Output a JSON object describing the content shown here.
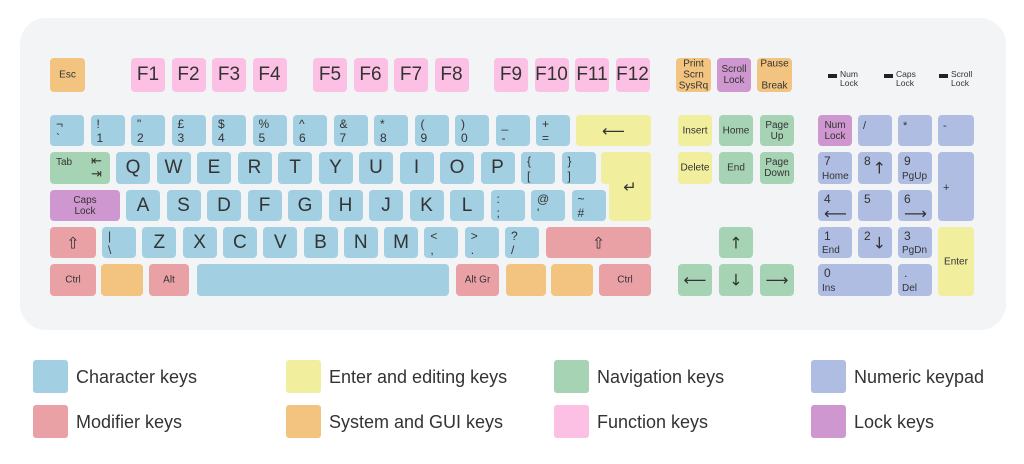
{
  "colors": {
    "character": "#a2cfe1",
    "modifier": "#e9a1a6",
    "enter_editing": "#f1ee9e",
    "system_gui": "#f2c480",
    "navigation": "#a6d3b3",
    "function": "#fdc0e5",
    "numeric": "#b0bde2",
    "lock": "#cf97cf"
  },
  "keys": [
    {
      "text": "Esc",
      "cat": "system_gui"
    },
    {
      "main": "F1",
      "cat": "function"
    },
    {
      "main": "F2",
      "cat": "function"
    },
    {
      "main": "F3",
      "cat": "function"
    },
    {
      "main": "F4",
      "cat": "function"
    },
    {
      "main": "F5",
      "cat": "function"
    },
    {
      "main": "F6",
      "cat": "function"
    },
    {
      "main": "F7",
      "cat": "function"
    },
    {
      "main": "F8",
      "cat": "function"
    },
    {
      "main": "F9",
      "cat": "function"
    },
    {
      "main": "F10",
      "cat": "function"
    },
    {
      "main": "F11",
      "cat": "function"
    },
    {
      "main": "F12",
      "cat": "function"
    },
    {
      "text": "Print\nScrn\nSysRq",
      "cat": "system_gui"
    },
    {
      "text": "Scroll\nLock",
      "cat": "lock"
    },
    {
      "text": "Pause\n\nBreak",
      "cat": "system_gui"
    },
    {
      "top": "¬",
      "bottom": "`",
      "cat": "character"
    },
    {
      "top": "!",
      "bottom": "1",
      "cat": "character"
    },
    {
      "top": "\"",
      "bottom": "2",
      "cat": "character"
    },
    {
      "top": "£",
      "bottom": "3",
      "cat": "character"
    },
    {
      "top": "$",
      "bottom": "4",
      "cat": "character"
    },
    {
      "top": "%",
      "bottom": "5",
      "cat": "character"
    },
    {
      "top": "^",
      "bottom": "6",
      "cat": "character"
    },
    {
      "top": "&",
      "bottom": "7",
      "cat": "character"
    },
    {
      "top": "*",
      "bottom": "8",
      "cat": "character"
    },
    {
      "top": "(",
      "bottom": "9",
      "cat": "character"
    },
    {
      "top": ")",
      "bottom": "0",
      "cat": "character"
    },
    {
      "top": "_",
      "bottom": "-",
      "cat": "character"
    },
    {
      "top": "+",
      "bottom": "=",
      "cat": "character"
    },
    {
      "icon": "backspace-arrow-icon",
      "cat": "enter_editing"
    },
    {
      "text": "Tab",
      "icon": "tab-arrows-icon",
      "cat": "navigation"
    },
    {
      "main": "Q",
      "cat": "character"
    },
    {
      "main": "W",
      "cat": "character"
    },
    {
      "main": "E",
      "cat": "character"
    },
    {
      "main": "R",
      "cat": "character"
    },
    {
      "main": "T",
      "cat": "character"
    },
    {
      "main": "Y",
      "cat": "character"
    },
    {
      "main": "U",
      "cat": "character"
    },
    {
      "main": "I",
      "cat": "character"
    },
    {
      "main": "O",
      "cat": "character"
    },
    {
      "main": "P",
      "cat": "character"
    },
    {
      "top": "{",
      "bottom": "[",
      "cat": "character"
    },
    {
      "top": "}",
      "bottom": "]",
      "cat": "character"
    },
    {
      "icon": "enter-arrow-icon",
      "cat": "enter_editing"
    },
    {
      "text": "Caps\nLock",
      "cat": "lock"
    },
    {
      "main": "A",
      "cat": "character"
    },
    {
      "main": "S",
      "cat": "character"
    },
    {
      "main": "D",
      "cat": "character"
    },
    {
      "main": "F",
      "cat": "character"
    },
    {
      "main": "G",
      "cat": "character"
    },
    {
      "main": "H",
      "cat": "character"
    },
    {
      "main": "J",
      "cat": "character"
    },
    {
      "main": "K",
      "cat": "character"
    },
    {
      "main": "L",
      "cat": "character"
    },
    {
      "top": ":",
      "bottom": ";",
      "cat": "character"
    },
    {
      "top": "@",
      "bottom": "'",
      "cat": "character"
    },
    {
      "top": "~",
      "bottom": "#",
      "cat": "character"
    },
    {
      "icon": "shift-icon",
      "cat": "modifier"
    },
    {
      "top": "|",
      "bottom": "\\",
      "cat": "character"
    },
    {
      "main": "Z",
      "cat": "character"
    },
    {
      "main": "X",
      "cat": "character"
    },
    {
      "main": "C",
      "cat": "character"
    },
    {
      "main": "V",
      "cat": "character"
    },
    {
      "main": "B",
      "cat": "character"
    },
    {
      "main": "N",
      "cat": "character"
    },
    {
      "main": "M",
      "cat": "character"
    },
    {
      "top": "<",
      "bottom": ",",
      "cat": "character"
    },
    {
      "top": ">",
      "bottom": ".",
      "cat": "character"
    },
    {
      "top": "?",
      "bottom": "/",
      "cat": "character"
    },
    {
      "icon": "shift-icon",
      "cat": "modifier"
    },
    {
      "text": "Ctrl",
      "cat": "modifier"
    },
    {
      "cat": "system_gui"
    },
    {
      "text": "Alt",
      "cat": "modifier"
    },
    {
      "cat": "character"
    },
    {
      "text": "Alt Gr",
      "cat": "modifier"
    },
    {
      "cat": "system_gui"
    },
    {
      "cat": "system_gui"
    },
    {
      "text": "Ctrl",
      "cat": "modifier"
    },
    {
      "text": "Insert",
      "cat": "enter_editing"
    },
    {
      "text": "Home",
      "cat": "navigation"
    },
    {
      "text": "Page\nUp",
      "cat": "navigation"
    },
    {
      "text": "Delete",
      "cat": "enter_editing"
    },
    {
      "text": "End",
      "cat": "navigation"
    },
    {
      "text": "Page\nDown",
      "cat": "navigation"
    },
    {
      "icon": "arrow-up-icon",
      "cat": "navigation"
    },
    {
      "icon": "arrow-left-icon",
      "cat": "navigation"
    },
    {
      "icon": "arrow-down-icon",
      "cat": "navigation"
    },
    {
      "icon": "arrow-right-icon",
      "cat": "navigation"
    },
    {
      "text": "Num\nLock",
      "cat": "lock"
    },
    {
      "tl": "/",
      "cat": "numeric"
    },
    {
      "tl": "*",
      "cat": "numeric"
    },
    {
      "tl": "-",
      "cat": "numeric"
    },
    {
      "top": "7",
      "sub": "Home",
      "cat": "numeric"
    },
    {
      "top": "8",
      "icon": "arrow-up-icon",
      "cat": "numeric"
    },
    {
      "top": "9",
      "sub": "PgUp",
      "cat": "numeric"
    },
    {
      "tl": "+",
      "cat": "numeric",
      "plus": true
    },
    {
      "top": "4",
      "icon": "arrow-left-icon",
      "cat": "numeric"
    },
    {
      "top": "5",
      "cat": "numeric"
    },
    {
      "top": "6",
      "icon": "arrow-right-icon",
      "cat": "numeric"
    },
    {
      "top": "1",
      "sub": "End",
      "cat": "numeric"
    },
    {
      "top": "2",
      "icon": "arrow-down-icon",
      "cat": "numeric"
    },
    {
      "top": "3",
      "sub": "PgDn",
      "cat": "numeric"
    },
    {
      "text": "Enter",
      "cat": "enter_editing"
    },
    {
      "top": "0",
      "sub": "Ins",
      "cat": "numeric"
    },
    {
      "top": ".",
      "sub": "Del",
      "cat": "numeric"
    }
  ],
  "leds": [
    {
      "label": "Num\nLock"
    },
    {
      "label": "Caps\nLock"
    },
    {
      "label": "Scroll\nLock"
    }
  ],
  "legend": [
    {
      "label": "Character keys",
      "cat": "character"
    },
    {
      "label": "Enter and editing keys",
      "cat": "enter_editing"
    },
    {
      "label": "Navigation keys",
      "cat": "navigation"
    },
    {
      "label": "Numeric keypad",
      "cat": "numeric"
    },
    {
      "label": "Modifier keys",
      "cat": "modifier"
    },
    {
      "label": "System and GUI keys",
      "cat": "system_gui"
    },
    {
      "label": "Function keys",
      "cat": "function"
    },
    {
      "label": "Lock keys",
      "cat": "lock"
    }
  ]
}
